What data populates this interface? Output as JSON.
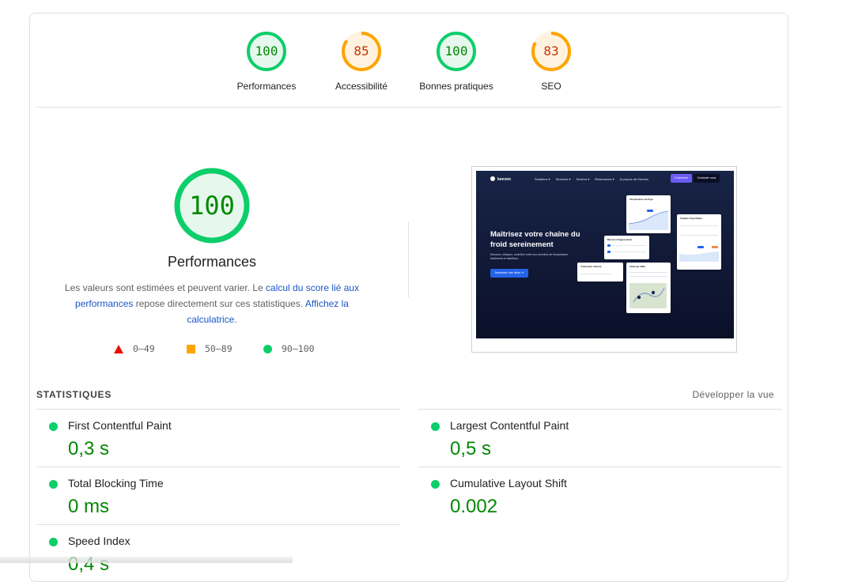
{
  "scores": [
    {
      "name": "Performances",
      "score": "100",
      "status": "pass",
      "fraction": 1.0
    },
    {
      "name": "Accessibilité",
      "score": "85",
      "status": "average",
      "fraction": 0.85
    },
    {
      "name": "Bonnes pratiques",
      "score": "100",
      "status": "pass",
      "fraction": 1.0
    },
    {
      "name": "SEO",
      "score": "83",
      "status": "average",
      "fraction": 0.83
    }
  ],
  "colors": {
    "pass": "#0cce6b",
    "pass_text": "#008800",
    "pass_bg": "#e6f8ee",
    "average": "#ffa400",
    "average_text": "#c33300",
    "average_bg": "#fff3e0",
    "fail": "#eb0f00",
    "link": "#1a57c6"
  },
  "main": {
    "score": "100",
    "title": "Performances",
    "desc_before": "Les valeurs sont estimées et peuvent varier. Le ",
    "desc_link1": "calcul du score lié aux performances",
    "desc_middle": " repose directement sur ces statistiques. ",
    "desc_link2": "Affichez la calculatrice",
    "desc_after": "."
  },
  "legend": [
    {
      "shape": "triangle-icon",
      "range": "0–49"
    },
    {
      "shape": "square-icon",
      "range": "50–89"
    },
    {
      "shape": "circle-icon",
      "range": "90–100"
    }
  ],
  "screenshot": {
    "logo": "keeveo",
    "menu": [
      "Solutions ▾",
      "Secteurs ▾",
      "Secteur ▾",
      "Ressources ▾",
      "À propos de Keeveo"
    ],
    "btn_primary": "Connexion",
    "btn_secondary": "Contacter nous",
    "headline": "Maîtrisez votre chaîne du froid sereinement",
    "subtext": "Mesurez, intégrez, contrôlez enfin vos données de température facilement et stabilisez.",
    "cta": "Demander une démo ➜",
    "card1": "Température du frigo",
    "card2": "Mesure d'hygrométrie",
    "card3": "Capteur frigorifique",
    "card4": "Traitement d'alerte",
    "card5": "Véhicule 3093"
  },
  "stats": {
    "header": "STATISTIQUES",
    "toggle": "Développer la vue",
    "metrics": [
      {
        "label": "First Contentful Paint",
        "value": "0,3 s"
      },
      {
        "label": "Largest Contentful Paint",
        "value": "0,5 s"
      },
      {
        "label": "Total Blocking Time",
        "value": "0 ms"
      },
      {
        "label": "Cumulative Layout Shift",
        "value": "0.002"
      },
      {
        "label": "Speed Index",
        "value": "0,4 s"
      }
    ]
  }
}
